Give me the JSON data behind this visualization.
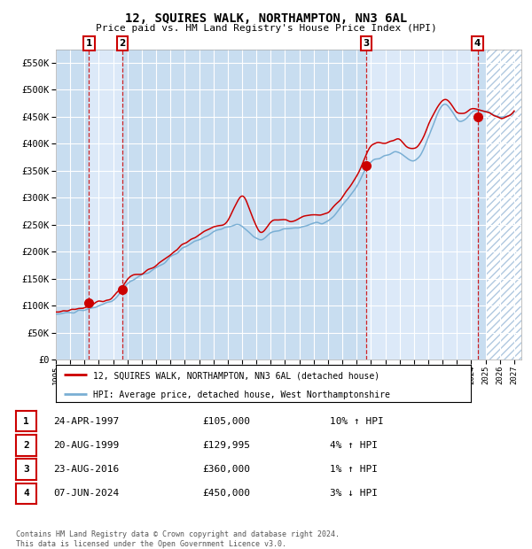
{
  "title": "12, SQUIRES WALK, NORTHAMPTON, NN3 6AL",
  "subtitle": "Price paid vs. HM Land Registry's House Price Index (HPI)",
  "ylim": [
    0,
    575000
  ],
  "xlim_start": 1995.0,
  "xlim_end": 2027.5,
  "yticks": [
    0,
    50000,
    100000,
    150000,
    200000,
    250000,
    300000,
    350000,
    400000,
    450000,
    500000,
    550000
  ],
  "ytick_labels": [
    "£0",
    "£50K",
    "£100K",
    "£150K",
    "£200K",
    "£250K",
    "£300K",
    "£350K",
    "£400K",
    "£450K",
    "£500K",
    "£550K"
  ],
  "background_color": "#cfe0f0",
  "hatch_region_start": 2025.0,
  "sale_dates": [
    1997.32,
    1999.64,
    2016.65,
    2024.44
  ],
  "sale_prices": [
    105000,
    129995,
    360000,
    450000
  ],
  "sale_numbers": [
    "1",
    "2",
    "3",
    "4"
  ],
  "vline_color": "#cc0000",
  "sale_dot_color": "#cc0000",
  "sale_box_color": "#cc0000",
  "legend_entries": [
    "12, SQUIRES WALK, NORTHAMPTON, NN3 6AL (detached house)",
    "HPI: Average price, detached house, West Northamptonshire"
  ],
  "line_red_color": "#cc0000",
  "line_blue_color": "#7aafd4",
  "table_entries": [
    {
      "num": "1",
      "date": "24-APR-1997",
      "price": "£105,000",
      "hpi": "10% ↑ HPI"
    },
    {
      "num": "2",
      "date": "20-AUG-1999",
      "price": "£129,995",
      "hpi": "4% ↑ HPI"
    },
    {
      "num": "3",
      "date": "23-AUG-2016",
      "price": "£360,000",
      "hpi": "1% ↑ HPI"
    },
    {
      "num": "4",
      "date": "07-JUN-2024",
      "price": "£450,000",
      "hpi": "3% ↓ HPI"
    }
  ],
  "footer": "Contains HM Land Registry data © Crown copyright and database right 2024.\nThis data is licensed under the Open Government Licence v3.0.",
  "grid_color": "#ffffff",
  "xticks": [
    1995,
    1996,
    1997,
    1998,
    1999,
    2000,
    2001,
    2002,
    2003,
    2004,
    2005,
    2006,
    2007,
    2008,
    2009,
    2010,
    2011,
    2012,
    2013,
    2014,
    2015,
    2016,
    2017,
    2018,
    2019,
    2020,
    2021,
    2022,
    2023,
    2024,
    2025,
    2026,
    2027
  ]
}
